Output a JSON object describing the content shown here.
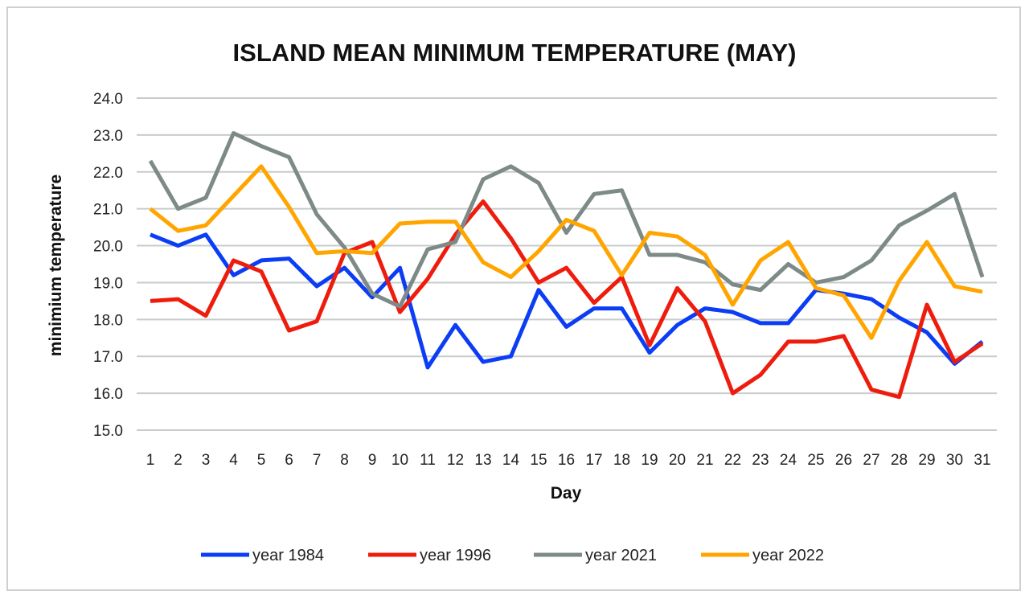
{
  "chart_data": {
    "type": "line",
    "title": "ISLAND MEAN MINIMUM TEMPERATURE (MAY)",
    "xlabel": "Day",
    "ylabel": "minimium temperature",
    "ylim": [
      15.0,
      24.0
    ],
    "yticks": [
      "15.0",
      "16.0",
      "17.0",
      "18.0",
      "19.0",
      "20.0",
      "21.0",
      "22.0",
      "23.0",
      "24.0"
    ],
    "x": [
      1,
      2,
      3,
      4,
      5,
      6,
      7,
      8,
      9,
      10,
      11,
      12,
      13,
      14,
      15,
      16,
      17,
      18,
      19,
      20,
      21,
      22,
      23,
      24,
      25,
      26,
      27,
      28,
      29,
      30,
      31
    ],
    "grid": true,
    "legend_position": "bottom",
    "series": [
      {
        "name": "year 1984",
        "color": "#0a3df5",
        "values": [
          20.3,
          20.0,
          20.3,
          19.2,
          19.6,
          19.65,
          18.9,
          19.4,
          18.6,
          19.4,
          16.7,
          17.85,
          16.85,
          17.0,
          18.8,
          17.8,
          18.3,
          18.3,
          17.1,
          17.85,
          18.3,
          18.2,
          17.9,
          17.9,
          18.8,
          18.7,
          18.55,
          18.05,
          17.65,
          16.8,
          17.4
        ]
      },
      {
        "name": "year 1996",
        "color": "#ee1c0c",
        "values": [
          18.5,
          18.55,
          18.1,
          19.6,
          19.3,
          17.7,
          17.95,
          19.8,
          20.1,
          18.2,
          19.1,
          20.3,
          21.2,
          20.2,
          19.0,
          19.4,
          18.45,
          19.15,
          17.3,
          18.85,
          17.95,
          16.0,
          16.5,
          17.4,
          17.4,
          17.55,
          16.1,
          15.9,
          18.4,
          16.85,
          17.35
        ]
      },
      {
        "name": "year 2021",
        "color": "#7d8a88",
        "values": [
          22.3,
          21.0,
          21.3,
          23.05,
          22.7,
          22.4,
          20.85,
          19.95,
          18.7,
          18.35,
          19.9,
          20.1,
          21.8,
          22.15,
          21.7,
          20.35,
          21.4,
          21.5,
          19.75,
          19.75,
          19.55,
          18.95,
          18.8,
          19.5,
          19.0,
          19.15,
          19.6,
          20.55,
          20.95,
          21.4,
          19.15
        ]
      },
      {
        "name": "year 2022",
        "color": "#ffa500",
        "values": [
          21.0,
          20.4,
          20.55,
          21.35,
          22.15,
          21.05,
          19.8,
          19.85,
          19.8,
          20.6,
          20.65,
          20.65,
          19.55,
          19.15,
          19.85,
          20.7,
          20.4,
          19.2,
          20.35,
          20.25,
          19.75,
          18.4,
          19.6,
          20.1,
          18.85,
          18.65,
          17.5,
          19.05,
          20.1,
          18.9,
          18.75
        ]
      }
    ]
  }
}
